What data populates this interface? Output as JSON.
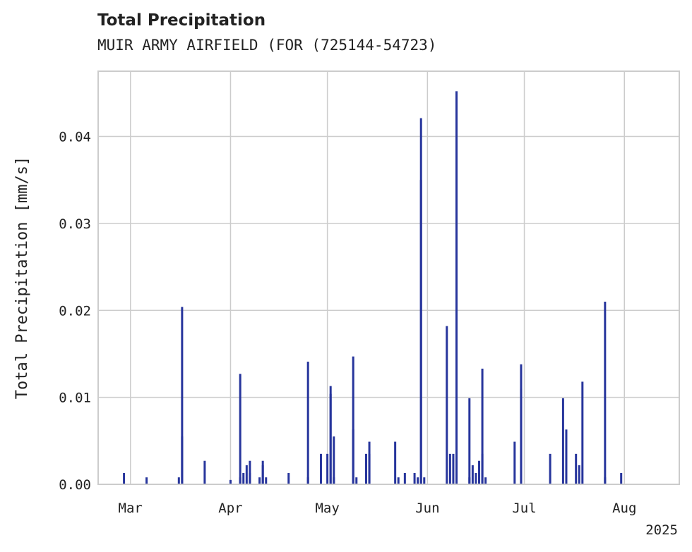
{
  "chart_data": {
    "type": "bar",
    "title": "Total Precipitation",
    "subtitle": "MUIR ARMY AIRFIELD (FOR (725144-54723)",
    "xlabel": "",
    "ylabel": "Total Precipitation [mm/s]",
    "ylim": [
      0,
      0.0475
    ],
    "yticks": [
      0.0,
      0.01,
      0.02,
      0.03,
      0.04
    ],
    "ytick_labels": [
      "0.00",
      "0.01",
      "0.02",
      "0.03",
      "0.04"
    ],
    "xlim": [
      "2025-02-19",
      "2025-08-18"
    ],
    "xticks": [
      "2025-03-01",
      "2025-04-01",
      "2025-05-01",
      "2025-06-01",
      "2025-07-01",
      "2025-08-01"
    ],
    "xtick_labels": [
      "Mar",
      "Apr",
      "May",
      "Jun",
      "Jul",
      "Aug"
    ],
    "x_offset_label": "2025",
    "grid": true,
    "color": "#27359c",
    "series": [
      {
        "x": [
          "2025-02-27",
          "2025-03-06",
          "2025-03-16",
          "2025-03-17",
          "2025-03-17",
          "2025-03-24",
          "2025-04-01",
          "2025-04-04",
          "2025-04-04",
          "2025-04-05",
          "2025-04-06",
          "2025-04-07",
          "2025-04-07",
          "2025-04-10",
          "2025-04-11",
          "2025-04-11",
          "2025-04-12",
          "2025-04-19",
          "2025-04-25",
          "2025-04-25",
          "2025-04-29",
          "2025-05-01",
          "2025-05-02",
          "2025-05-02",
          "2025-05-03",
          "2025-05-03",
          "2025-05-09",
          "2025-05-09",
          "2025-05-10",
          "2025-05-13",
          "2025-05-14",
          "2025-05-14",
          "2025-05-22",
          "2025-05-23",
          "2025-05-25",
          "2025-05-28",
          "2025-05-29",
          "2025-05-30",
          "2025-05-30",
          "2025-05-31",
          "2025-06-07",
          "2025-06-08",
          "2025-06-09",
          "2025-06-10",
          "2025-06-14",
          "2025-06-14",
          "2025-06-15",
          "2025-06-16",
          "2025-06-17",
          "2025-06-17",
          "2025-06-18",
          "2025-06-18",
          "2025-06-19",
          "2025-06-28",
          "2025-06-30",
          "2025-06-30",
          "2025-07-09",
          "2025-07-13",
          "2025-07-14",
          "2025-07-17",
          "2025-07-18",
          "2025-07-19",
          "2025-07-26",
          "2025-07-26",
          "2025-07-31"
        ],
        "values": [
          0.0013,
          0.0008,
          0.0008,
          0.0204,
          0.0055,
          0.0027,
          0.0005,
          0.0008,
          0.0127,
          0.0013,
          0.0022,
          0.0013,
          0.0027,
          0.0008,
          0.0027,
          0.0022,
          0.0008,
          0.0013,
          0.0008,
          0.0141,
          0.0035,
          0.0035,
          0.0104,
          0.0113,
          0.0055,
          0.0008,
          0.0147,
          0.0063,
          0.0008,
          0.0035,
          0.0049,
          0.0035,
          0.0049,
          0.0008,
          0.0013,
          0.0013,
          0.0008,
          0.0421,
          0.035,
          0.0008,
          0.0182,
          0.0035,
          0.0035,
          0.0452,
          0.0008,
          0.0099,
          0.0022,
          0.0013,
          0.0027,
          0.0013,
          0.0133,
          0.0035,
          0.0008,
          0.0049,
          0.011,
          0.0138,
          0.0035,
          0.0099,
          0.0063,
          0.0035,
          0.0022,
          0.0118,
          0.0008,
          0.021,
          0.0013
        ]
      }
    ]
  }
}
